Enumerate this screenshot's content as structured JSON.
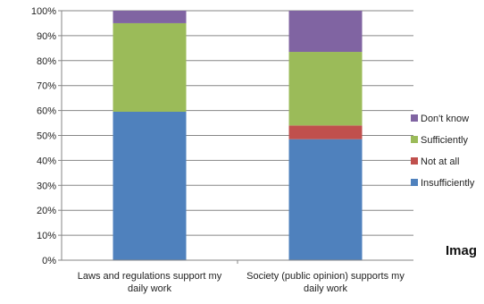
{
  "chart_data": {
    "type": "bar",
    "stacked": true,
    "categories": [
      [
        "Laws and regulations support my",
        "daily work"
      ],
      [
        "Society (public opinion) supports my",
        "daily work"
      ]
    ],
    "series": [
      {
        "name": "Insufficiently",
        "values": [
          59.5,
          48.5
        ],
        "color": "#4f81bd"
      },
      {
        "name": "Not at all",
        "values": [
          0,
          5.5
        ],
        "color": "#c0504d"
      },
      {
        "name": "Sufficiently",
        "values": [
          35.5,
          29.5
        ],
        "color": "#9bbb59"
      },
      {
        "name": "Don't know",
        "values": [
          5.0,
          16.5
        ],
        "color": "#8064a2"
      }
    ],
    "y_ticks": [
      "0%",
      "10%",
      "20%",
      "30%",
      "40%",
      "50%",
      "60%",
      "70%",
      "80%",
      "90%",
      "100%"
    ],
    "ylim": [
      0,
      100
    ],
    "grid": true,
    "legend": "right"
  },
  "overflow_label": "Imag"
}
